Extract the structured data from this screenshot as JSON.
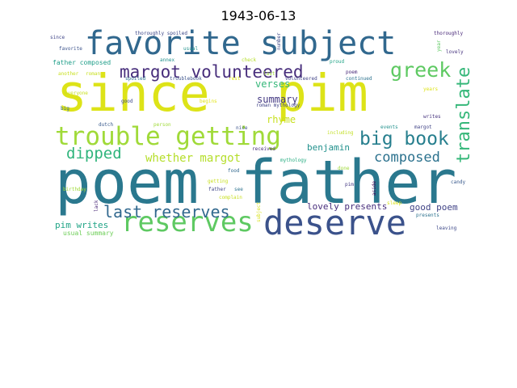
{
  "title": "1943-06-13",
  "words": [
    {
      "text": "poem",
      "color": "#2a788e"
    },
    {
      "text": "father",
      "color": "#2a788e"
    },
    {
      "text": "since",
      "color": "#dde318"
    },
    {
      "text": "pim",
      "color": "#dde318"
    },
    {
      "text": "favorite subject",
      "color": "#31688e"
    },
    {
      "text": "deserve",
      "color": "#3b528b"
    },
    {
      "text": "reserves",
      "color": "#5ec962"
    },
    {
      "text": "trouble getting",
      "color": "#a0da39"
    },
    {
      "text": "margot volunteered",
      "color": "#472d7b"
    },
    {
      "text": "translate",
      "color": "#35b779"
    },
    {
      "text": "greek",
      "color": "#5ec962"
    },
    {
      "text": "big book",
      "color": "#277f8e"
    },
    {
      "text": "last reserves",
      "color": "#31688e"
    },
    {
      "text": "dipped",
      "color": "#2fb47c"
    },
    {
      "text": "composed",
      "color": "#2c728e"
    },
    {
      "text": "whether margot",
      "color": "#b5de2b"
    },
    {
      "text": "verses",
      "color": "#35b779"
    },
    {
      "text": "summary",
      "color": "#443983"
    },
    {
      "text": "rhyme",
      "color": "#c8e020"
    },
    {
      "text": "benjamin",
      "color": "#21918c"
    },
    {
      "text": "lovely presents",
      "color": "#472d7b"
    },
    {
      "text": "good poem",
      "color": "#414487"
    },
    {
      "text": "pim writes",
      "color": "#20a486"
    },
    {
      "text": "usual summary",
      "color": "#6ece58"
    },
    {
      "text": "father composed",
      "color": "#1f9e89"
    },
    {
      "text": "thoroughly spoiled",
      "color": "#3e4989"
    },
    {
      "text": "thoroughly",
      "color": "#482878"
    },
    {
      "text": "since",
      "color": "#404688"
    },
    {
      "text": "favorite",
      "color": "#3b528b"
    },
    {
      "text": "usual",
      "color": "#21918c"
    },
    {
      "text": "number",
      "color": "#3e4989"
    },
    {
      "text": "lovely",
      "color": "#46337e"
    },
    {
      "text": "year",
      "color": "#5ec962"
    },
    {
      "text": "annex",
      "color": "#21918c"
    },
    {
      "text": "check",
      "color": "#b5de2b"
    },
    {
      "text": "proud",
      "color": "#20a486"
    },
    {
      "text": "another",
      "color": "#c8e020"
    },
    {
      "text": "roman",
      "color": "#c8e020"
    },
    {
      "text": "spoiled",
      "color": "#2c728e"
    },
    {
      "text": "troublebook",
      "color": "#3b528b"
    },
    {
      "text": "rest",
      "color": "#e3e418"
    },
    {
      "text": "last",
      "color": "#a0da39"
    },
    {
      "text": "volunteered",
      "color": "#414487"
    },
    {
      "text": "continued",
      "color": "#2c728e"
    },
    {
      "text": "poem",
      "color": "#482878"
    },
    {
      "text": "everyone",
      "color": "#c8e020"
    },
    {
      "text": "big",
      "color": "#31688e"
    },
    {
      "text": "good",
      "color": "#3e4989"
    },
    {
      "text": "begins",
      "color": "#e3e418"
    },
    {
      "text": "roman mythology",
      "color": "#414487"
    },
    {
      "text": "writes",
      "color": "#46337e"
    },
    {
      "text": "dutch",
      "color": "#38598c"
    },
    {
      "text": "person",
      "color": "#a0da39"
    },
    {
      "text": "nice",
      "color": "#3b528b"
    },
    {
      "text": "events",
      "color": "#21918c"
    },
    {
      "text": "margot",
      "color": "#414487"
    },
    {
      "text": "including",
      "color": "#c2df23"
    },
    {
      "text": "received",
      "color": "#472d7b"
    },
    {
      "text": "mythology",
      "color": "#27ad81"
    },
    {
      "text": "food",
      "color": "#31688e"
    },
    {
      "text": "getting",
      "color": "#c8e020"
    },
    {
      "text": "done",
      "color": "#a0da39"
    },
    {
      "text": "pim",
      "color": "#443983"
    },
    {
      "text": "aside",
      "color": "#440154"
    },
    {
      "text": "candy",
      "color": "#38598c"
    },
    {
      "text": "birthday",
      "color": "#a0da39"
    },
    {
      "text": "father",
      "color": "#404688"
    },
    {
      "text": "see",
      "color": "#2c728e"
    },
    {
      "text": "complain",
      "color": "#c8e020"
    },
    {
      "text": "lack",
      "color": "#482878"
    },
    {
      "text": "sleep",
      "color": "#d8e219"
    },
    {
      "text": "subject",
      "color": "#d8e219"
    },
    {
      "text": "presents",
      "color": "#2c728e"
    },
    {
      "text": "leaving",
      "color": "#3e4989"
    },
    {
      "text": "years",
      "color": "#dde318"
    }
  ]
}
